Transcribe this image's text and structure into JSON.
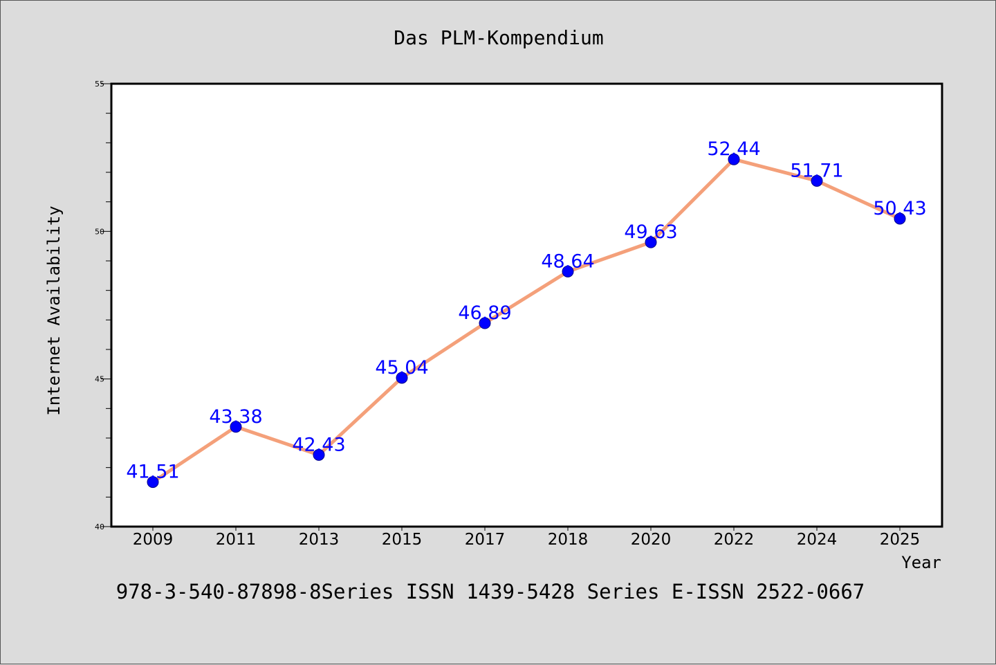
{
  "chart_data": {
    "type": "line",
    "title": "Das PLM-Kompendium",
    "xlabel": "Year",
    "ylabel": "Internet Availability",
    "footer": "978-3-540-87898-8Series ISSN 1439-5428 Series E-ISSN 2522-0667",
    "categories": [
      "2009",
      "2011",
      "2013",
      "2015",
      "2017",
      "2018",
      "2020",
      "2022",
      "2024",
      "2025"
    ],
    "values": [
      41.51,
      43.38,
      42.43,
      45.04,
      46.89,
      48.64,
      49.63,
      52.44,
      51.71,
      50.43
    ],
    "data_labels": [
      "41.51",
      "43.38",
      "42.43",
      "45.04",
      "46.89",
      "48.64",
      "49.63",
      "52.44",
      "51.71",
      "50.43"
    ],
    "ylim": [
      40,
      55
    ],
    "yticks": [
      "40",
      "45",
      "50",
      "55"
    ],
    "grid": false,
    "legend": "none",
    "colors": {
      "line": "#f4a07a",
      "marker": "#0000ff",
      "label": "#0000ff",
      "plot_bg": "#ffffff",
      "page_bg": "#dcdcdc"
    }
  }
}
